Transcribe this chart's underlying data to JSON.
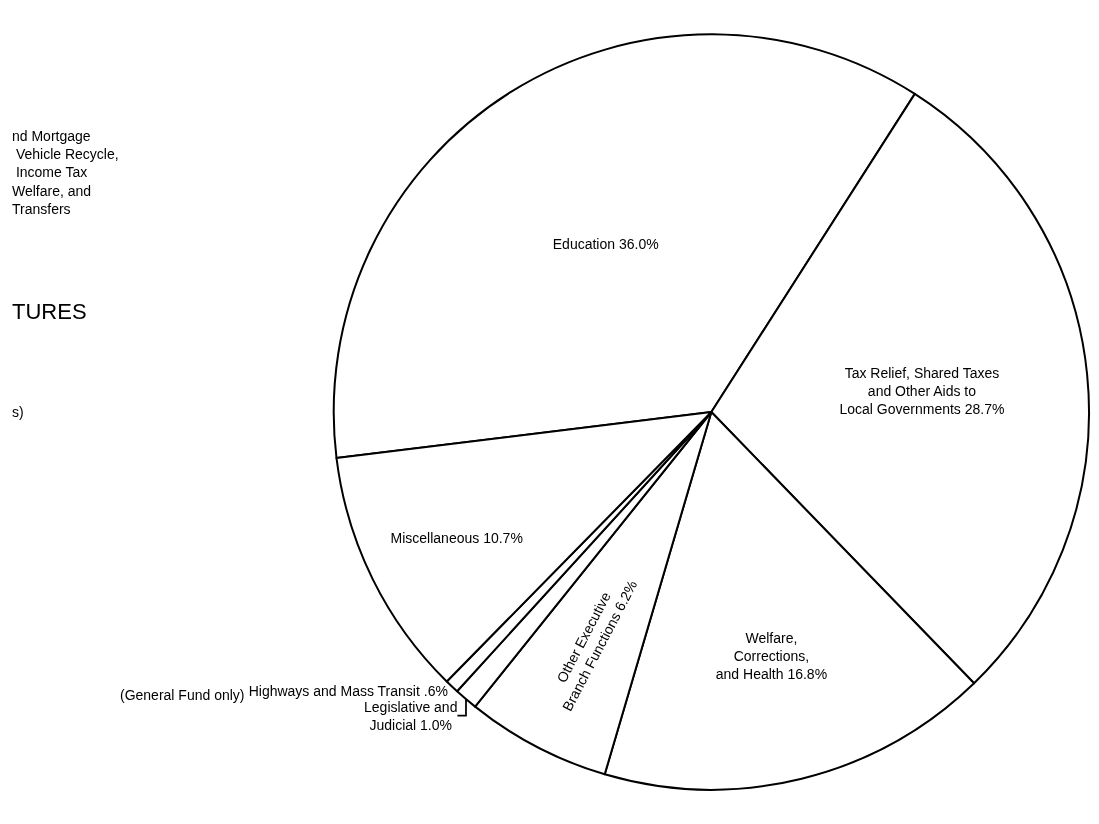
{
  "chart_data": {
    "type": "pie",
    "categories": [
      "Education",
      "Tax Relief, Shared Taxes\nand Other Aids to\nLocal Governments",
      "Welfare,\nCorrections,\nand Health",
      "Other Executive\nBranch Functions",
      "Legislative and\nJudicial",
      "Highways and Mass Transit",
      "Miscellaneous"
    ],
    "values": [
      36.0,
      28.7,
      16.8,
      6.2,
      1.0,
      0.6,
      10.7
    ],
    "value_labels": [
      "36.0%",
      "28.7%",
      "16.8%",
      "6.2%",
      "1.0%",
      ".6%",
      "10.7%"
    ],
    "colors": [
      "#ffffff",
      "#ffffff",
      "#ffffff",
      "#ffffff",
      "#ffffff",
      "#ffffff",
      "#ffffff"
    ],
    "annotations": [
      "(General Fund only)",
      "TURES",
      "nd Mortgage\n Vehicle Recycle,\n Income Tax\nWelfare, and\nTransfers",
      "s)"
    ]
  }
}
